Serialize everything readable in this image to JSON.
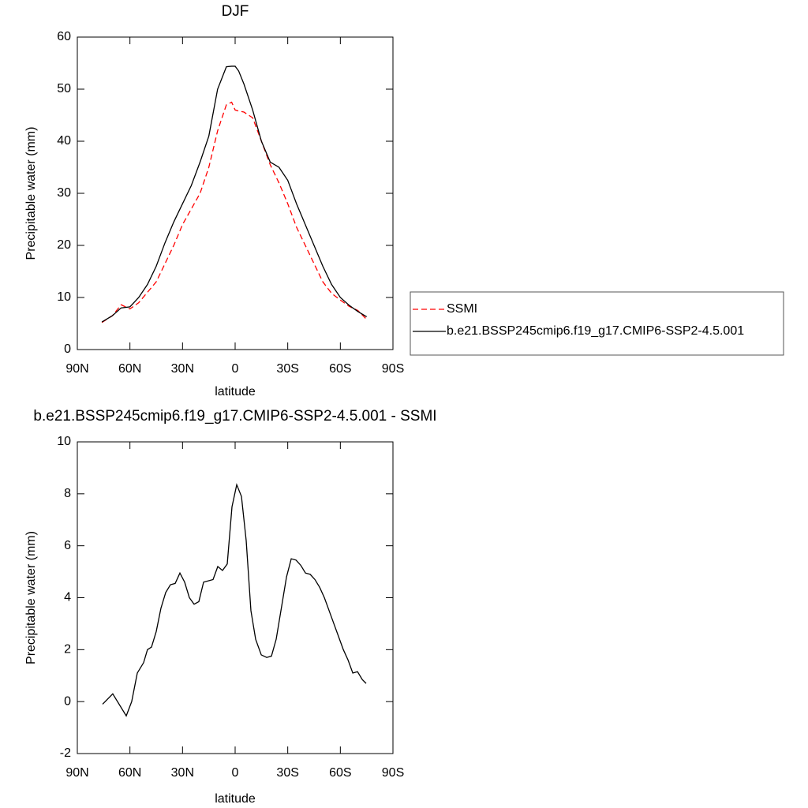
{
  "chart_data": [
    {
      "type": "line",
      "title": "DJF",
      "xlabel": "latitude",
      "ylabel": "Precipitable water (mm)",
      "x": [
        76,
        70,
        65,
        60,
        55,
        50,
        45,
        40,
        35,
        30,
        25,
        20,
        15,
        10,
        5,
        2,
        0,
        -2,
        -5,
        -10,
        -15,
        -20,
        -25,
        -30,
        -35,
        -40,
        -45,
        -50,
        -55,
        -60,
        -65,
        -70,
        -75
      ],
      "series": [
        {
          "name": "SSMI",
          "color": "#ff0000",
          "line_style": "dashed",
          "values": [
            5.2,
            6.5,
            8.6,
            7.8,
            9,
            11,
            13,
            16.5,
            20,
            24,
            27,
            30,
            35,
            42,
            47,
            47.5,
            46,
            45.8,
            45.6,
            44.5,
            40,
            35.5,
            32,
            28,
            23.5,
            20,
            16.5,
            13,
            10.8,
            9.5,
            8.3,
            7.5,
            5.8
          ]
        },
        {
          "name": "b.e21.BSSP245cmip6.f19_g17.CMIP6-SSP2-4.5.001",
          "color": "#000000",
          "line_style": "solid",
          "values": [
            5.3,
            6.5,
            8,
            8.2,
            10,
            12.5,
            16,
            20.5,
            24.5,
            28,
            31.5,
            36,
            41,
            50,
            54.3,
            54.4,
            54.4,
            53.5,
            51,
            46,
            40,
            36,
            35,
            32.5,
            28,
            24,
            20,
            16,
            12.5,
            10,
            8.5,
            7.3,
            6.3
          ]
        }
      ],
      "xlim": [
        90,
        -90
      ],
      "xticks": [
        {
          "value": 90,
          "label": "90N"
        },
        {
          "value": 60,
          "label": "60N"
        },
        {
          "value": 30,
          "label": "30N"
        },
        0,
        {
          "value": -30,
          "label": "30S"
        },
        {
          "value": -60,
          "label": "60S"
        },
        {
          "value": -90,
          "label": "90S"
        }
      ],
      "ylim": [
        0,
        60
      ],
      "yticks": [
        0,
        10,
        20,
        30,
        40,
        50,
        60
      ],
      "grid": false,
      "legend": "right"
    },
    {
      "type": "line",
      "title": "b.e21.BSSP245cmip6.f19_g17.CMIP6-SSP2-4.5.001 - SSMI",
      "xlabel": "latitude",
      "ylabel": "Precipitable water (mm)",
      "x": [
        75.6,
        69.8,
        62.1,
        59.0,
        55.8,
        52.2,
        50.0,
        47.7,
        45.0,
        42.3,
        39.6,
        36.9,
        34.2,
        31.5,
        28.8,
        26.1,
        23.4,
        20.7,
        18.0,
        12.6,
        9.9,
        7.2,
        4.5,
        1.8,
        -0.9,
        -3.6,
        -6.3,
        -9.0,
        -11.7,
        -14.9,
        -18.0,
        -20.7,
        -23.4,
        -26.6,
        -29.3,
        -32.0,
        -34.7,
        -37.4,
        -40.1,
        -42.8,
        -45.5,
        -48.2,
        -50.9,
        -53.6,
        -56.3,
        -59.0,
        -61.7,
        -64.4,
        -67.1,
        -69.8,
        -72.5,
        -74.7
      ],
      "values": [
        -0.1,
        0.3,
        -0.55,
        0,
        1.1,
        1.5,
        2.0,
        2.1,
        2.7,
        3.6,
        4.2,
        4.5,
        4.55,
        4.95,
        4.6,
        4.0,
        3.75,
        3.85,
        4.6,
        4.7,
        5.2,
        5.05,
        5.3,
        7.5,
        8.35,
        7.9,
        6.2,
        3.5,
        2.4,
        1.8,
        1.7,
        1.75,
        2.4,
        3.7,
        4.8,
        5.5,
        5.45,
        5.25,
        4.95,
        4.9,
        4.7,
        4.4,
        4.0,
        3.5,
        3.0,
        2.5,
        2.0,
        1.6,
        1.1,
        1.15,
        0.85,
        0.7
      ],
      "color": "#000000",
      "xlim": [
        90,
        -90
      ],
      "xticks": [
        {
          "value": 90,
          "label": "90N"
        },
        {
          "value": 60,
          "label": "60N"
        },
        {
          "value": 30,
          "label": "30N"
        },
        0,
        {
          "value": -30,
          "label": "30S"
        },
        {
          "value": -60,
          "label": "60S"
        },
        {
          "value": -90,
          "label": "90S"
        }
      ],
      "ylim": [
        -2,
        10
      ],
      "yticks": [
        -2,
        0,
        2,
        4,
        6,
        8,
        10
      ],
      "grid": false
    }
  ]
}
